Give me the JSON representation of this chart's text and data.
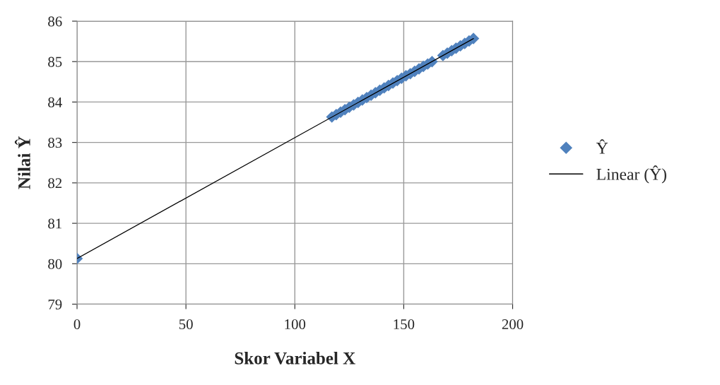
{
  "chart_data": {
    "type": "scatter",
    "xlabel": "Skor Variabel X",
    "ylabel": "Nilai Ŷ",
    "xlim": [
      0,
      200
    ],
    "xticks": [
      0,
      50,
      100,
      150,
      200
    ],
    "ylim": [
      79,
      86
    ],
    "yticks": [
      79,
      80,
      81,
      82,
      83,
      84,
      85,
      86
    ],
    "grid": true,
    "legend": "right",
    "series": [
      {
        "name": "Ŷ",
        "marker": "diamond",
        "color": "#4f81bd",
        "x": [
          0,
          117,
          119,
          121,
          123,
          125,
          127,
          129,
          131,
          133,
          135,
          137,
          139,
          141,
          143,
          145,
          147,
          149,
          151,
          153,
          155,
          157,
          159,
          161,
          163,
          168,
          170,
          172,
          174,
          176,
          178,
          180,
          182
        ],
        "values": [
          80.13,
          83.63,
          83.69,
          83.75,
          83.81,
          83.87,
          83.93,
          83.99,
          84.05,
          84.11,
          84.17,
          84.23,
          84.29,
          84.35,
          84.41,
          84.47,
          84.53,
          84.59,
          84.65,
          84.7,
          84.76,
          84.82,
          84.88,
          84.94,
          85.0,
          85.15,
          85.21,
          85.27,
          85.33,
          85.39,
          85.45,
          85.51,
          85.57
        ]
      },
      {
        "name": "Linear (Ŷ)",
        "type": "line",
        "color": "#000000",
        "x": [
          0,
          182
        ],
        "values": [
          80.13,
          85.57
        ]
      }
    ]
  }
}
